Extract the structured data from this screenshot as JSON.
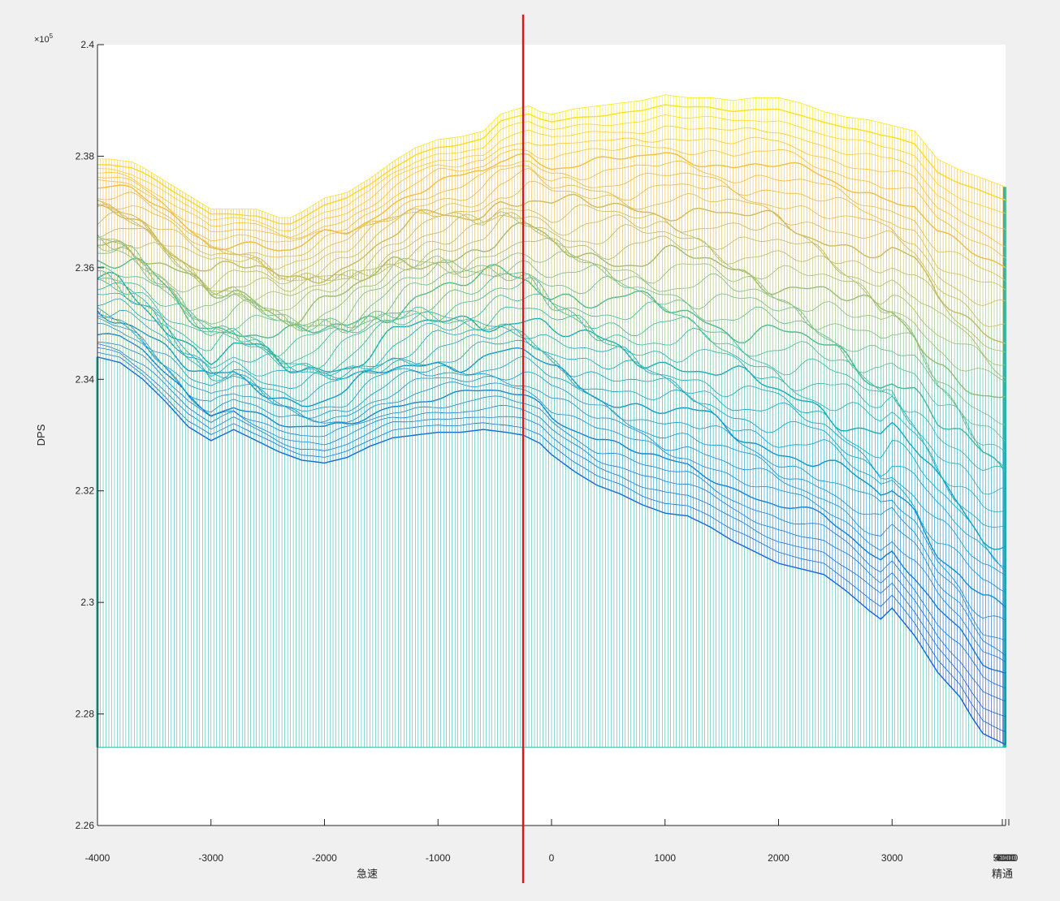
{
  "chart_data": {
    "type": "surface-mesh-3d-side-view",
    "title": "",
    "xlabel": "急速",
    "xlabel_right": "精通",
    "ylabel": "DPS",
    "y_exponent": "×10",
    "y_exponent_power": "5",
    "xlim": [
      -4000,
      4000
    ],
    "ylim": [
      2.26,
      2.4
    ],
    "x_ticks": [
      -4000,
      -3000,
      -2000,
      -1000,
      0,
      1000,
      2000,
      3000,
      4000
    ],
    "x_tick_labels": [
      "-4000",
      "-3000",
      "-2000",
      "-1000",
      "0",
      "1000",
      "2000",
      "3000",
      "4000"
    ],
    "x_right_stacked_labels": [
      "5000",
      "6000"
    ],
    "y_ticks": [
      2.26,
      2.28,
      2.3,
      2.32,
      2.34,
      2.36,
      2.38,
      2.4
    ],
    "y_tick_labels": [
      "2.26",
      "2.28",
      "2.3",
      "2.32",
      "2.34",
      "2.36",
      "2.38",
      "2.4"
    ],
    "vline_x": -250,
    "vline_color": "#d7191c",
    "surface_base": 2.274,
    "grid": false,
    "colormap": "parula",
    "top_edge": {
      "x": [
        -4000,
        -3900,
        -3700,
        -3600,
        -3400,
        -3200,
        -3000,
        -2800,
        -2600,
        -2400,
        -2300,
        -2200,
        -2000,
        -1800,
        -1600,
        -1400,
        -1200,
        -1000,
        -800,
        -600,
        -450,
        -300,
        -200,
        -100,
        0,
        200,
        400,
        600,
        800,
        1000,
        1200,
        1400,
        1600,
        1800,
        2000,
        2200,
        2400,
        2600,
        2800,
        3000,
        3200,
        3400,
        3600,
        3800,
        4000
      ],
      "y": [
        2.3795,
        2.3795,
        2.379,
        2.378,
        2.3755,
        2.373,
        2.3705,
        2.3705,
        2.3705,
        2.369,
        2.369,
        2.37,
        2.3725,
        2.3735,
        2.376,
        2.379,
        2.3815,
        2.383,
        2.3835,
        2.3845,
        2.3875,
        2.3885,
        2.389,
        2.388,
        2.3875,
        2.3885,
        2.389,
        2.3895,
        2.39,
        2.391,
        2.3905,
        2.3905,
        2.39,
        2.3905,
        2.3905,
        2.3895,
        2.388,
        2.387,
        2.3865,
        2.3855,
        2.3845,
        2.3795,
        2.3775,
        2.376,
        2.3745
      ]
    },
    "bottom_edge": {
      "x": [
        -4000,
        -3800,
        -3600,
        -3400,
        -3200,
        -3000,
        -2800,
        -2600,
        -2400,
        -2200,
        -2000,
        -1800,
        -1600,
        -1400,
        -1200,
        -1000,
        -800,
        -600,
        -400,
        -250,
        -100,
        0,
        200,
        400,
        600,
        800,
        1000,
        1200,
        1400,
        1600,
        1800,
        2000,
        2200,
        2400,
        2600,
        2800,
        2900,
        3000,
        3200,
        3400,
        3600,
        3700,
        3800,
        3900,
        4000
      ],
      "y": [
        2.344,
        2.343,
        2.34,
        2.336,
        2.3315,
        2.329,
        2.331,
        2.329,
        2.327,
        2.3255,
        2.325,
        2.326,
        2.328,
        2.3295,
        2.33,
        2.3305,
        2.3305,
        2.331,
        2.3305,
        2.33,
        2.3285,
        2.3265,
        2.3235,
        2.321,
        2.3195,
        2.3175,
        2.316,
        2.3155,
        2.3135,
        2.311,
        2.309,
        2.307,
        2.306,
        2.305,
        2.302,
        2.2985,
        2.297,
        2.299,
        2.294,
        2.2875,
        2.283,
        2.2795,
        2.2765,
        2.2755,
        2.2745
      ]
    }
  }
}
